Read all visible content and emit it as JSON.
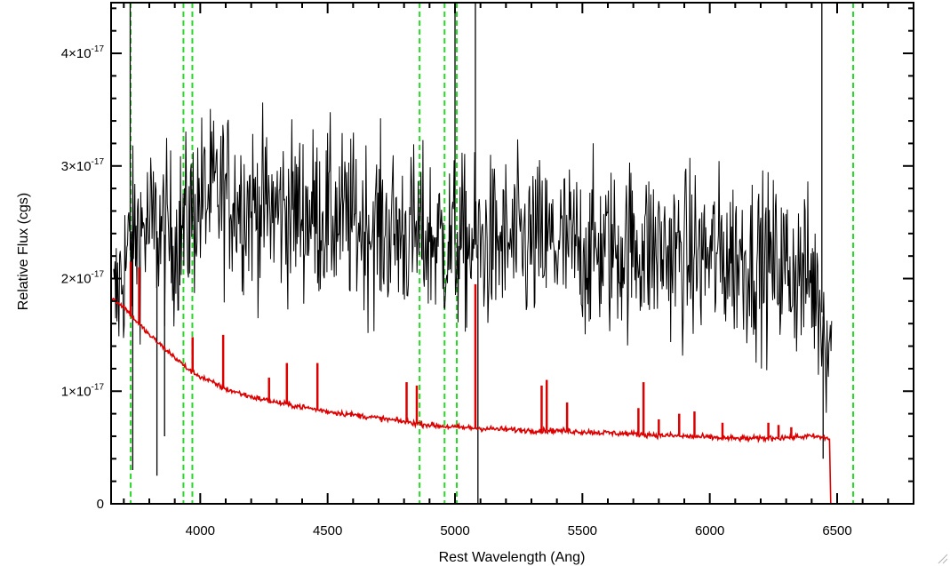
{
  "chart_data": {
    "type": "line",
    "title": "",
    "xlabel": "Rest Wavelength (Ang)",
    "ylabel": "Relative Flux (cgs)",
    "xlim": [
      3650,
      6800
    ],
    "ylim": [
      0,
      4.45
    ],
    "y_unit_exponent": "-17",
    "x_ticks": [
      {
        "value": 4000,
        "label": "4000"
      },
      {
        "value": 4500,
        "label": "4500"
      },
      {
        "value": 5000,
        "label": "5000"
      },
      {
        "value": 5500,
        "label": "5500"
      },
      {
        "value": 6000,
        "label": "6000"
      },
      {
        "value": 6500,
        "label": "6500"
      }
    ],
    "y_ticks": [
      {
        "value": 0,
        "mantissa": "0",
        "exponent": ""
      },
      {
        "value": 1,
        "mantissa": "1×10",
        "exponent": "-17"
      },
      {
        "value": 2,
        "mantissa": "2×10",
        "exponent": "-17"
      },
      {
        "value": 3,
        "mantissa": "3×10",
        "exponent": "-17"
      },
      {
        "value": 4,
        "mantissa": "4×10",
        "exponent": "-17"
      }
    ],
    "grid": false,
    "series": [
      {
        "color": "#000000",
        "style": "noisy-spectrum",
        "x": [
          3660,
          3700,
          3750,
          3800,
          3850,
          3900,
          3950,
          4000,
          4100,
          4200,
          4300,
          4400,
          4500,
          4600,
          4700,
          4800,
          4900,
          5000,
          5100,
          5200,
          5300,
          5400,
          5500,
          5600,
          5700,
          5800,
          5900,
          6000,
          6100,
          6200,
          6300,
          6400,
          6480
        ],
        "y": [
          1.7,
          2.1,
          2.4,
          2.45,
          2.4,
          2.35,
          2.5,
          2.7,
          2.75,
          2.65,
          2.6,
          2.6,
          2.55,
          2.5,
          2.45,
          2.4,
          2.35,
          2.3,
          2.3,
          2.3,
          2.3,
          2.3,
          2.25,
          2.25,
          2.3,
          2.25,
          2.2,
          2.2,
          2.2,
          2.15,
          2.1,
          2.0,
          1.4
        ],
        "spikes": [
          {
            "x": 3725,
            "y": 4.45
          },
          {
            "x": 3735,
            "y": 0.3
          },
          {
            "x": 3830,
            "y": 0.25
          },
          {
            "x": 3860,
            "y": 0.6
          },
          {
            "x": 5000,
            "y": 4.45
          },
          {
            "x": 5080,
            "y": 4.45
          },
          {
            "x": 5090,
            "y": 0.0
          },
          {
            "x": 6440,
            "y": 4.45
          },
          {
            "x": 6445,
            "y": 0.4
          }
        ]
      },
      {
        "color": "#dd0000",
        "style": "model-continuum",
        "x": [
          3650,
          3700,
          3750,
          3800,
          3850,
          3900,
          3950,
          4000,
          4100,
          4200,
          4300,
          4400,
          4500,
          4600,
          4700,
          4800,
          4900,
          5000,
          5100,
          5200,
          5300,
          5400,
          5500,
          5600,
          5700,
          5800,
          5900,
          6000,
          6100,
          6200,
          6300,
          6400,
          6470,
          6475,
          6800
        ],
        "y": [
          1.83,
          1.75,
          1.62,
          1.5,
          1.4,
          1.3,
          1.2,
          1.13,
          1.02,
          0.95,
          0.9,
          0.86,
          0.82,
          0.79,
          0.76,
          0.73,
          0.7,
          0.68,
          0.67,
          0.66,
          0.65,
          0.65,
          0.64,
          0.63,
          0.62,
          0.61,
          0.6,
          0.59,
          0.58,
          0.58,
          0.59,
          0.6,
          0.58,
          0.0,
          0.0
        ],
        "lines": [
          {
            "x": 3727,
            "y": 2.15
          },
          {
            "x": 3760,
            "y": 2.1
          },
          {
            "x": 3970,
            "y": 1.48
          },
          {
            "x": 4090,
            "y": 1.5
          },
          {
            "x": 4270,
            "y": 1.12
          },
          {
            "x": 4340,
            "y": 1.25
          },
          {
            "x": 4460,
            "y": 1.25
          },
          {
            "x": 4810,
            "y": 1.08
          },
          {
            "x": 4850,
            "y": 1.05
          },
          {
            "x": 5080,
            "y": 1.95
          },
          {
            "x": 5340,
            "y": 1.05
          },
          {
            "x": 5360,
            "y": 1.1
          },
          {
            "x": 5440,
            "y": 0.9
          },
          {
            "x": 5720,
            "y": 0.85
          },
          {
            "x": 5740,
            "y": 1.08
          },
          {
            "x": 5800,
            "y": 0.75
          },
          {
            "x": 5880,
            "y": 0.8
          },
          {
            "x": 5940,
            "y": 0.82
          },
          {
            "x": 6050,
            "y": 0.72
          },
          {
            "x": 6230,
            "y": 0.72
          },
          {
            "x": 6270,
            "y": 0.7
          },
          {
            "x": 6320,
            "y": 0.68
          }
        ]
      }
    ],
    "vertical_markers": [
      {
        "x": 3727,
        "color": "#22dd22",
        "style": "dashed"
      },
      {
        "x": 3934,
        "color": "#22dd22",
        "style": "dashed"
      },
      {
        "x": 3969,
        "color": "#22dd22",
        "style": "dashed"
      },
      {
        "x": 4861,
        "color": "#22dd22",
        "style": "dashed"
      },
      {
        "x": 4959,
        "color": "#22dd22",
        "style": "dashed"
      },
      {
        "x": 5007,
        "color": "#22dd22",
        "style": "dashed"
      },
      {
        "x": 6563,
        "color": "#22dd22",
        "style": "dashed"
      }
    ]
  }
}
